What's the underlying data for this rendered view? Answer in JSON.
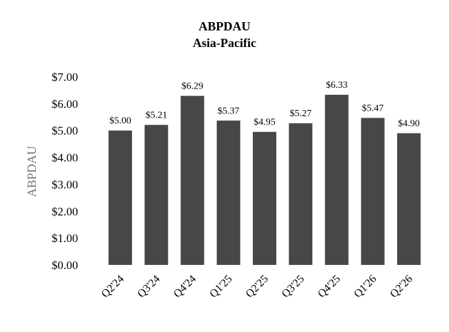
{
  "chart_data": {
    "type": "bar",
    "title": "ABPDAU",
    "subtitle": "Asia-Pacific",
    "xlabel": "",
    "ylabel": "ABPDAU",
    "categories": [
      "Q2'24",
      "Q3'24",
      "Q4'24",
      "Q1'25",
      "Q2'25",
      "Q3'25",
      "Q4'25",
      "Q1'26",
      "Q2'26"
    ],
    "values": [
      5.0,
      5.21,
      6.29,
      5.37,
      4.95,
      5.27,
      6.33,
      5.47,
      4.9
    ],
    "data_labels": [
      "$5.00",
      "$5.21",
      "$6.29",
      "$5.37",
      "$4.95",
      "$5.27",
      "$6.33",
      "$5.47",
      "$4.90"
    ],
    "ylim": [
      0,
      7
    ],
    "yticks": [
      "$0.00",
      "$1.00",
      "$2.00",
      "$3.00",
      "$4.00",
      "$5.00",
      "$6.00",
      "$7.00"
    ],
    "grid": false,
    "bar_color": "#474747"
  }
}
